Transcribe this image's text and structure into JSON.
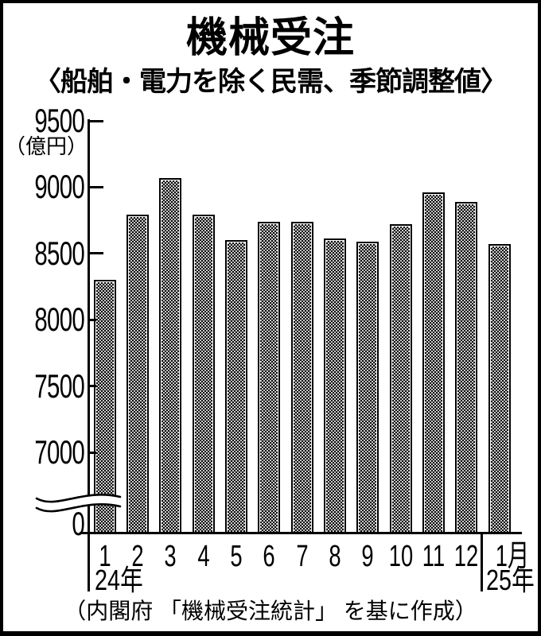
{
  "title": "機械受注",
  "subtitle": "〈船舶・電力を除く民需、季節調整値〉",
  "y_axis": {
    "unit_label": "（億円）",
    "ticks": [
      9500,
      9000,
      8500,
      8000,
      7500,
      7000
    ],
    "zero_label": "0",
    "axis_break": true
  },
  "x_axis": {
    "labels": [
      "1",
      "2",
      "3",
      "4",
      "5",
      "6",
      "7",
      "8",
      "9",
      "10",
      "11",
      "12",
      "1月"
    ],
    "year_left": "24年",
    "year_right": "25年"
  },
  "source": "（内閣府 「機械受注統計」 を基に作成）",
  "colors": {
    "ink": "#000000",
    "paper": "#ffffff",
    "bar_pattern_dark": "#0a0a0a",
    "bar_pattern_light": "#c9c9c9"
  },
  "chart_data": {
    "type": "bar",
    "title": "機械受注",
    "subtitle": "〈船舶・電力を除く民需、季節調整値〉",
    "ylabel": "億円",
    "categories": [
      "24年1月",
      "2月",
      "3月",
      "4月",
      "5月",
      "6月",
      "7月",
      "8月",
      "9月",
      "10月",
      "11月",
      "12月",
      "25年1月"
    ],
    "values": [
      8300,
      8790,
      9070,
      8790,
      8600,
      8740,
      8740,
      8610,
      8590,
      8720,
      8960,
      8890,
      8570
    ],
    "ylim_display": [
      7000,
      9500
    ],
    "y_axis_break_to_zero": true,
    "grid": false,
    "legend": false,
    "source": "内閣府「機械受注統計」を基に作成"
  }
}
